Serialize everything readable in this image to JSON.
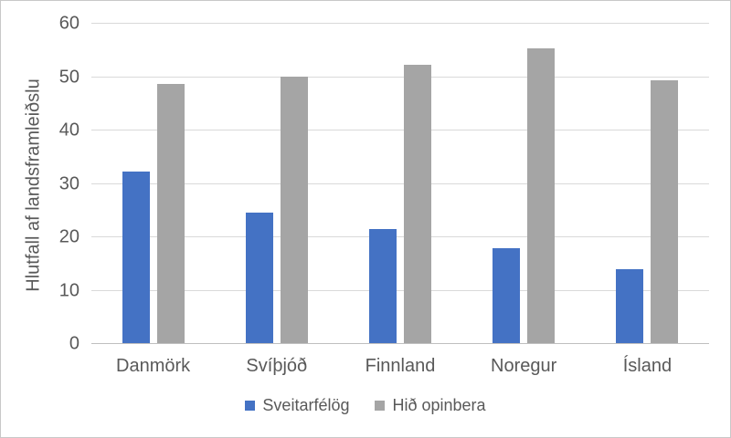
{
  "chart_data": {
    "type": "bar",
    "title": "",
    "ylabel": "Hlutfall af landsframleiðslu",
    "xlabel": "",
    "categories": [
      "Danmörk",
      "Svíþjóð",
      "Finnland",
      "Noregur",
      "Ísland"
    ],
    "series": [
      {
        "name": "Sveitarfélög",
        "color": "#4472C4",
        "values": [
          32.2,
          24.4,
          21.3,
          17.7,
          13.9
        ]
      },
      {
        "name": "Hið opinbera",
        "color": "#A5A5A5",
        "values": [
          48.5,
          50.0,
          52.2,
          55.2,
          49.2
        ]
      }
    ],
    "ylim": [
      0,
      60
    ],
    "ytick_step": 10,
    "ytick_labels": [
      "0",
      "10",
      "20",
      "30",
      "40",
      "50",
      "60"
    ],
    "grid": true,
    "legend_position": "bottom",
    "colors": {
      "gridline": "#D9D9D9",
      "axis_line": "#BFBFBF",
      "text": "#595959",
      "frame_border": "#C8C8C8",
      "background": "#FFFFFF"
    }
  }
}
